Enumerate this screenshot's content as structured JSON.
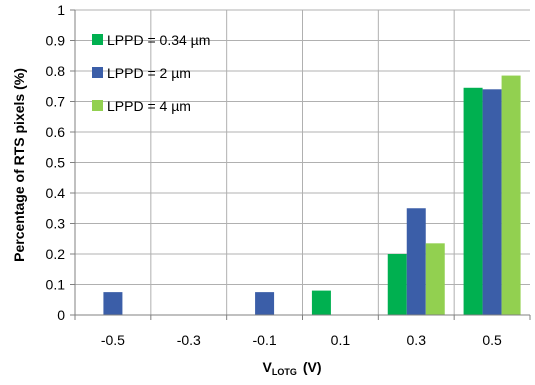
{
  "chart_data": {
    "type": "bar",
    "title": "",
    "xlabel": {
      "main": "V",
      "subscript": "LOTG",
      "unit": "(V)"
    },
    "ylabel": "Percentage of RTS pixels (%)",
    "categories": [
      "-0.5",
      "-0.3",
      "-0.1",
      "0.1",
      "0.3",
      "0.5"
    ],
    "ylim": [
      0,
      1
    ],
    "yticks": [
      "0",
      "0.1",
      "0.2",
      "0.3",
      "0.4",
      "0.5",
      "0.6",
      "0.7",
      "0.8",
      "0.9",
      "1"
    ],
    "grid": true,
    "legend_position": "top-left",
    "series": [
      {
        "name": "LPPD = 0.34 µm",
        "color": "#00b050",
        "values": [
          0,
          0,
          0,
          0.08,
          0.2,
          0.745
        ]
      },
      {
        "name": "LPPD = 2 µm",
        "color": "#3b5ea8",
        "values": [
          0.075,
          0,
          0.075,
          0,
          0.35,
          0.74
        ]
      },
      {
        "name": "LPPD = 4 µm",
        "color": "#92d050",
        "values": [
          0,
          0,
          0,
          0,
          0.235,
          0.785
        ]
      }
    ]
  }
}
